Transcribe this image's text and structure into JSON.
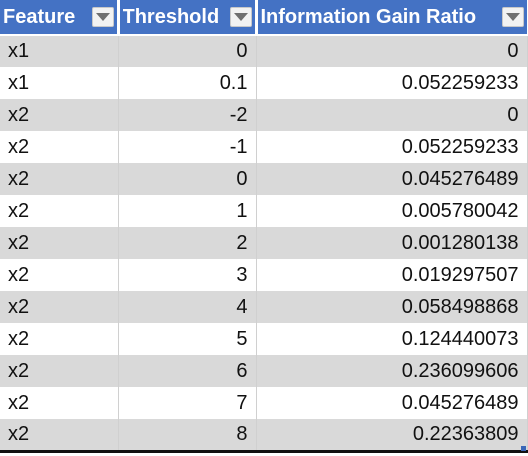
{
  "table": {
    "columns": [
      {
        "label": "Feature"
      },
      {
        "label": "Threshold"
      },
      {
        "label": "Information Gain Ratio"
      }
    ],
    "rows": [
      [
        "x1",
        "0",
        "0"
      ],
      [
        "x1",
        "0.1",
        "0.052259233"
      ],
      [
        "x2",
        "-2",
        "0"
      ],
      [
        "x2",
        "-1",
        "0.052259233"
      ],
      [
        "x2",
        "0",
        "0.045276489"
      ],
      [
        "x2",
        "1",
        "0.005780042"
      ],
      [
        "x2",
        "2",
        "0.001280138"
      ],
      [
        "x2",
        "3",
        "0.019297507"
      ],
      [
        "x2",
        "4",
        "0.058498868"
      ],
      [
        "x2",
        "5",
        "0.124440073"
      ],
      [
        "x2",
        "6",
        "0.236099606"
      ],
      [
        "x2",
        "7",
        "0.045276489"
      ],
      [
        "x2",
        "8",
        "0.22363809"
      ]
    ]
  },
  "colors": {
    "header_bg": "#4472c4",
    "header_text": "#ffffff",
    "band_row": "#d9d9d9",
    "plain_row": "#ffffff"
  },
  "icons": {
    "filter_dropdown": "chevron-down-icon",
    "table_resize": "resize-handle-icon"
  }
}
